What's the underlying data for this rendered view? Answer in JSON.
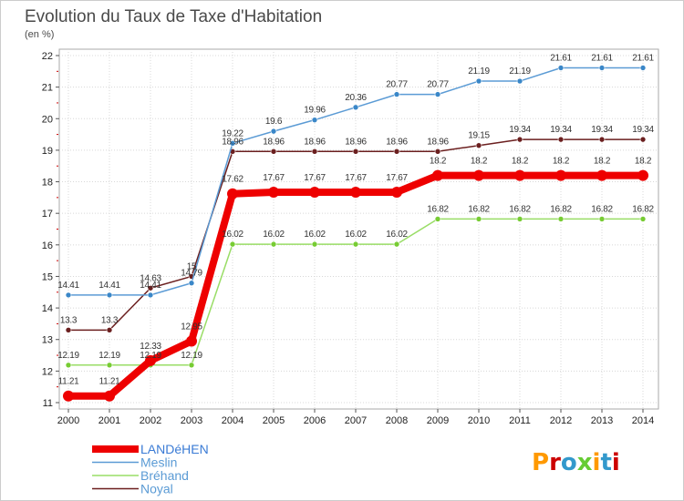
{
  "title": "Evolution du Taux de Taxe d'Habitation",
  "subtitle": "(en %)",
  "logo": "Proxiti",
  "colors": {
    "background": "#ffffff",
    "plot_border": "#aaaaaa",
    "grid": "#d8d8d8",
    "axis_tick_red": "#cc0000",
    "logo_letters": [
      "#ff9900",
      "#cc0000",
      "#3399cc",
      "#66cc33",
      "#ff9900",
      "#3399cc",
      "#cc0000"
    ]
  },
  "chart_data": {
    "type": "line",
    "title": "Evolution du Taux de Taxe d'Habitation",
    "ylabel": "(en %)",
    "xlabel": "",
    "ylim": [
      11,
      22
    ],
    "yticks": [
      11,
      12,
      13,
      14,
      15,
      16,
      17,
      18,
      19,
      20,
      21,
      22
    ],
    "categories": [
      "2000",
      "2001",
      "2002",
      "2003",
      "2004",
      "2005",
      "2006",
      "2007",
      "2008",
      "2009",
      "2010",
      "2011",
      "2012",
      "2013",
      "2014"
    ],
    "grid": true,
    "legend_position": "bottom-left",
    "series": [
      {
        "name": "Noyal",
        "color": "#6b1f1f",
        "marker_color": "#6b1f1f",
        "bold": false,
        "values": [
          13.3,
          13.3,
          14.63,
          15,
          18.96,
          18.96,
          18.96,
          18.96,
          18.96,
          18.96,
          19.15,
          19.34,
          19.34,
          19.34,
          19.34
        ],
        "labels": [
          "13.3",
          "13.3",
          "14.63",
          "15",
          "18.96",
          "18.96",
          "18.96",
          "18.96",
          "18.96",
          "18.96",
          "19.15",
          "19.34",
          "19.34",
          "19.34",
          "19.34"
        ]
      },
      {
        "name": "Meslin",
        "color": "#5b9bd5",
        "marker_color": "#3a87c8",
        "bold": false,
        "values": [
          14.41,
          14.41,
          14.41,
          14.79,
          19.22,
          19.6,
          19.96,
          20.36,
          20.77,
          20.77,
          21.19,
          21.19,
          21.61,
          21.61,
          21.61
        ],
        "labels": [
          "14.41",
          "14.41",
          "14.41",
          "14.79",
          "19.22",
          "19.6",
          "19.96",
          "20.36",
          "20.77",
          "20.77",
          "21.19",
          "21.19",
          "21.61",
          "21.61",
          "21.61"
        ]
      },
      {
        "name": "Bréhand",
        "color": "#99dd66",
        "marker_color": "#77cc33",
        "bold": false,
        "values": [
          12.19,
          12.19,
          12.19,
          12.19,
          16.02,
          16.02,
          16.02,
          16.02,
          16.02,
          16.82,
          16.82,
          16.82,
          16.82,
          16.82,
          16.82
        ],
        "labels": [
          "12.19",
          "12.19",
          "12.19",
          "12.19",
          "16.02",
          "16.02",
          "16.02",
          "16.02",
          "16.02",
          "16.82",
          "16.82",
          "16.82",
          "16.82",
          "16.82",
          "16.82"
        ]
      },
      {
        "name": "LANDéHEN",
        "color": "#ee0000",
        "marker_color": "#ee0000",
        "bold": true,
        "values": [
          11.21,
          11.21,
          12.33,
          12.95,
          17.62,
          17.67,
          17.67,
          17.67,
          17.67,
          18.2,
          18.2,
          18.2,
          18.2,
          18.2,
          18.2
        ],
        "labels": [
          "11.21",
          "11.21",
          "12.33",
          "12.95",
          "17.62",
          "17.67",
          "17.67",
          "17.67",
          "17.67",
          "18.2",
          "18.2",
          "18.2",
          "18.2",
          "18.2",
          "18.2"
        ]
      }
    ],
    "legend": [
      {
        "name": "LANDéHEN",
        "color": "#ee0000",
        "bold": true
      },
      {
        "name": "Meslin",
        "color": "#5b9bd5",
        "bold": false
      },
      {
        "name": "Bréhand",
        "color": "#99dd66",
        "bold": false
      },
      {
        "name": "Noyal",
        "color": "#6b1f1f",
        "bold": false
      }
    ]
  }
}
